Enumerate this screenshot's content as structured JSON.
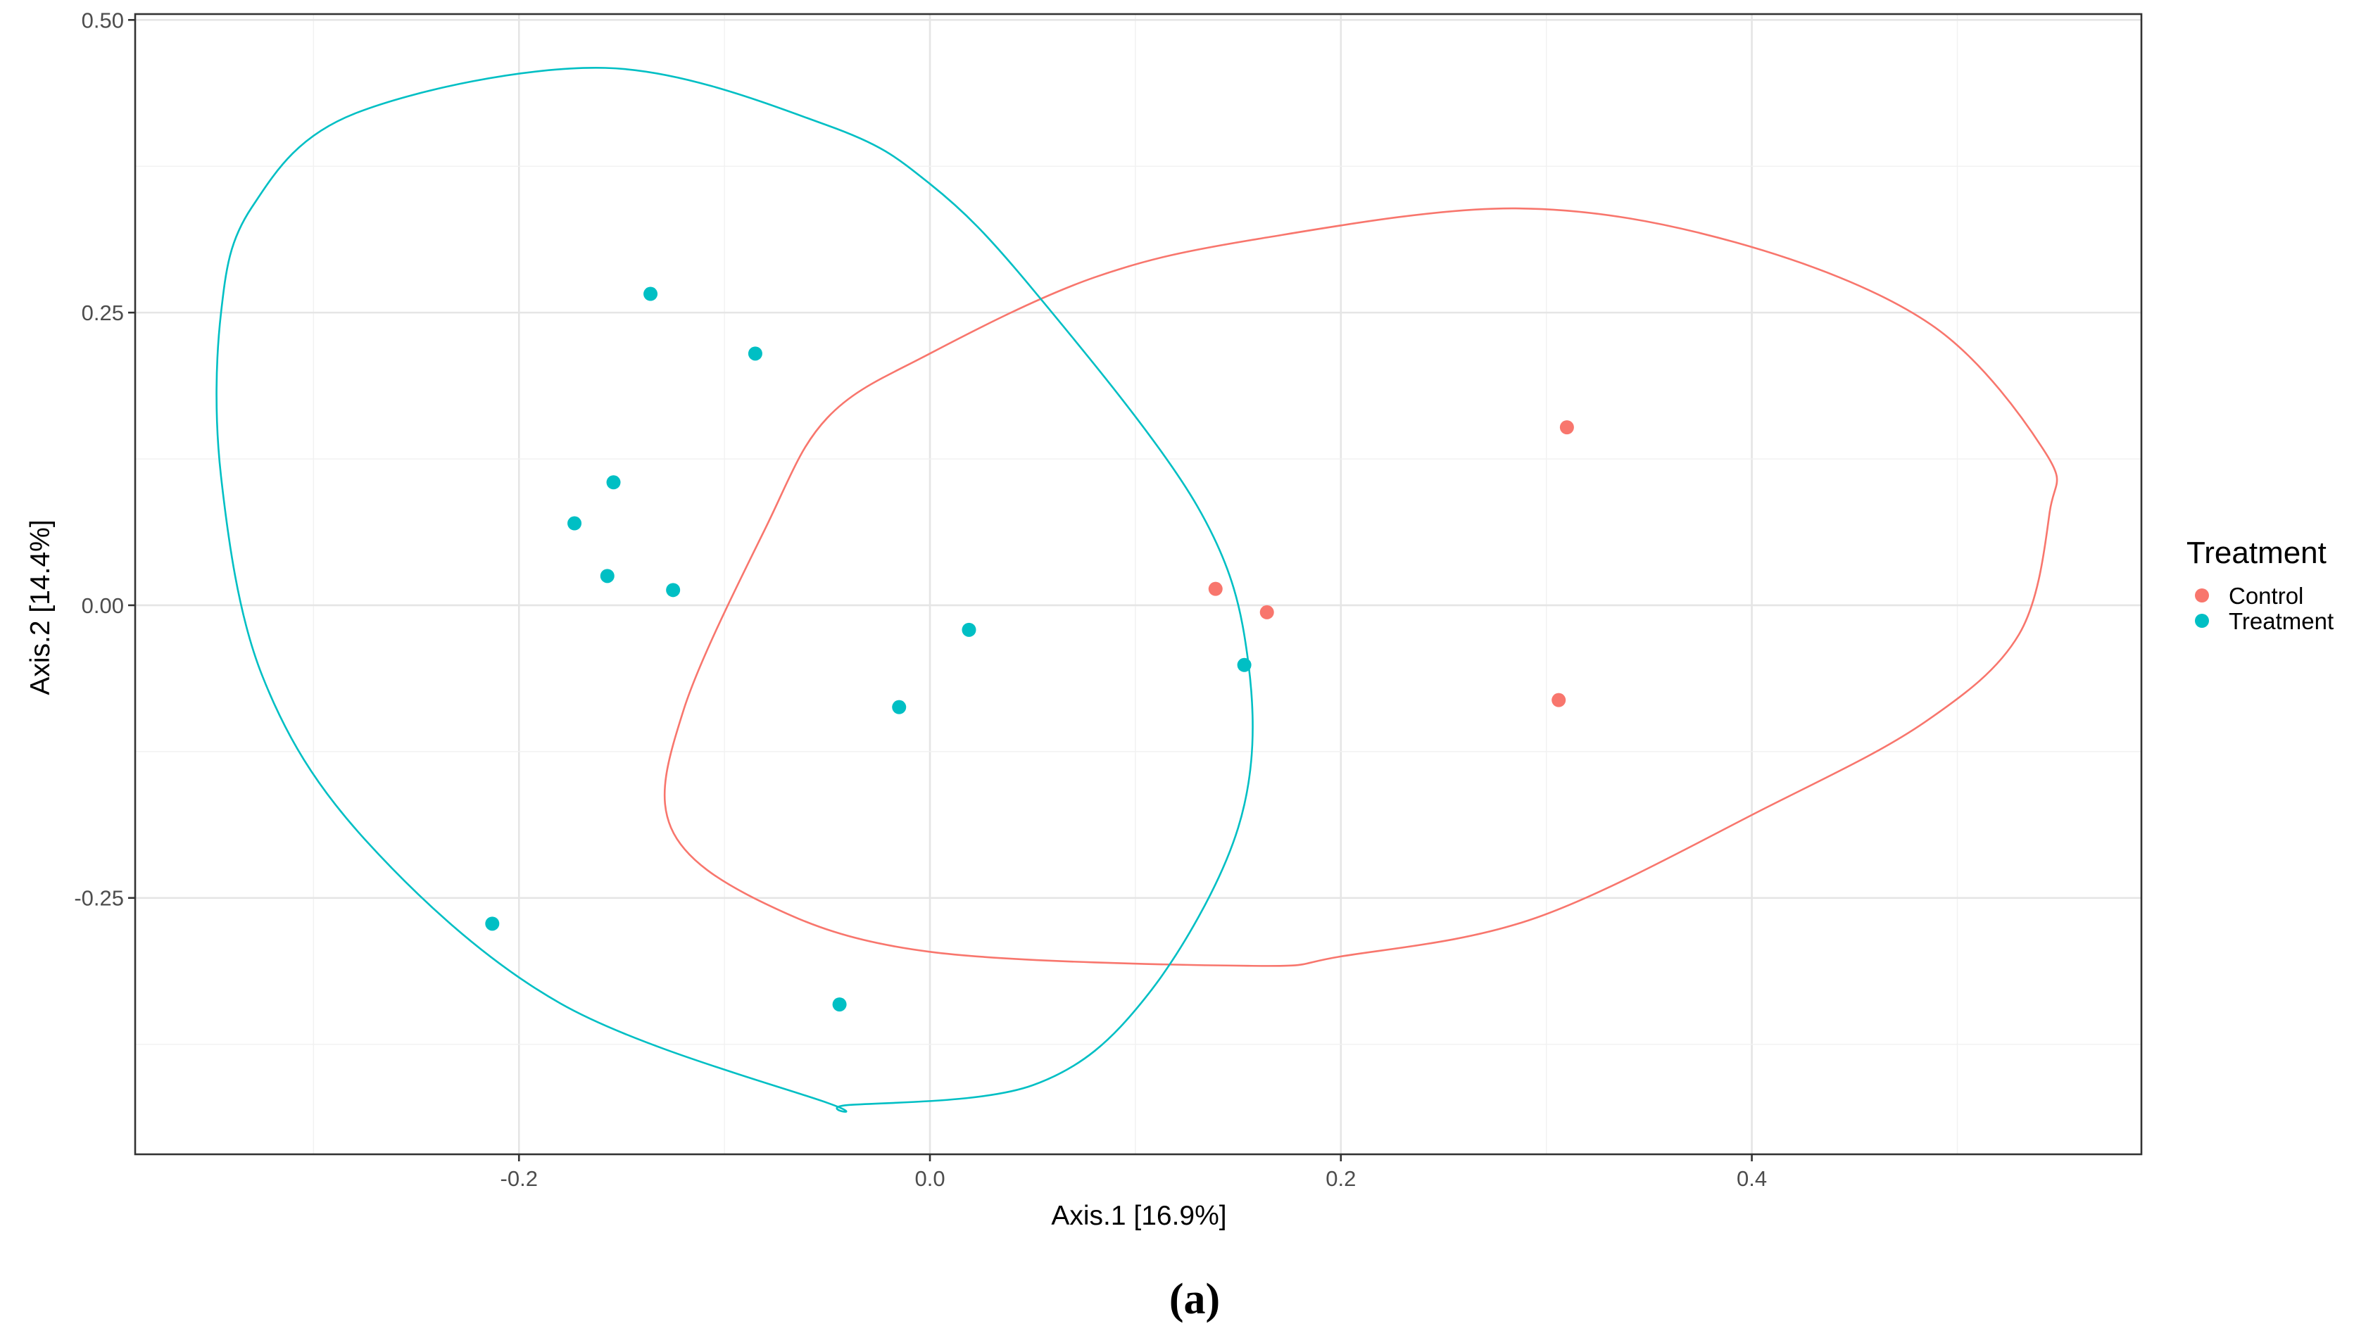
{
  "chart_data": {
    "type": "scatter",
    "title": "",
    "caption": "(a)",
    "xlabel": "Axis.1   [16.9%]",
    "ylabel": "Axis.2   [14.4%]",
    "xlim": [
      -0.3868,
      0.5896
    ],
    "ylim": [
      -0.469,
      0.505
    ],
    "xticks": [
      -0.2,
      0.0,
      0.2,
      0.4
    ],
    "xtick_labels": [
      "-0.2",
      "0.0",
      "0.2",
      "0.4"
    ],
    "yticks": [
      -0.25,
      0.0,
      0.25,
      0.5
    ],
    "ytick_labels": [
      "-0.25",
      "0.00",
      "0.25",
      "0.50"
    ],
    "grid": true,
    "legend": {
      "title": "Treatment",
      "position": "right"
    },
    "series": [
      {
        "name": "Control",
        "color": "#f8766d",
        "points": [
          {
            "x": 0.139,
            "y": 0.014
          },
          {
            "x": 0.164,
            "y": -0.006
          },
          {
            "x": 0.31,
            "y": 0.152
          },
          {
            "x": 0.306,
            "y": -0.081
          }
        ],
        "ellipse": [
          [
            0.285,
            0.339
          ],
          [
            0.392,
            0.31
          ],
          [
            0.487,
            0.24
          ],
          [
            0.543,
            0.13
          ],
          [
            0.545,
            0.08
          ],
          [
            0.53,
            -0.025
          ],
          [
            0.484,
            -0.1
          ],
          [
            0.408,
            -0.172
          ],
          [
            0.295,
            -0.267
          ],
          [
            0.2,
            -0.3
          ],
          [
            0.155,
            -0.308
          ],
          [
            0.0,
            -0.296
          ],
          [
            -0.08,
            -0.255
          ],
          [
            -0.126,
            -0.19
          ],
          [
            -0.12,
            -0.09
          ],
          [
            -0.08,
            0.066
          ],
          [
            -0.05,
            0.16
          ],
          [
            0.0,
            0.215
          ],
          [
            0.08,
            0.28
          ],
          [
            0.16,
            0.313
          ]
        ]
      },
      {
        "name": "Treatment",
        "color": "#00bfc4",
        "points": [
          {
            "x": -0.136,
            "y": 0.266
          },
          {
            "x": -0.085,
            "y": 0.215
          },
          {
            "x": -0.154,
            "y": 0.105
          },
          {
            "x": -0.173,
            "y": 0.07
          },
          {
            "x": -0.157,
            "y": 0.025
          },
          {
            "x": -0.125,
            "y": 0.013
          },
          {
            "x": 0.019,
            "y": -0.021
          },
          {
            "x": -0.015,
            "y": -0.087
          },
          {
            "x": 0.153,
            "y": -0.051
          },
          {
            "x": -0.213,
            "y": -0.272
          },
          {
            "x": -0.044,
            "y": -0.341
          }
        ],
        "ellipse": [
          [
            -0.158,
            0.459
          ],
          [
            -0.28,
            0.42
          ],
          [
            -0.33,
            0.34
          ],
          [
            -0.345,
            0.25
          ],
          [
            -0.345,
            0.11
          ],
          [
            -0.325,
            -0.06
          ],
          [
            -0.275,
            -0.2
          ],
          [
            -0.18,
            -0.34
          ],
          [
            -0.05,
            -0.425
          ],
          [
            -0.04,
            -0.427
          ],
          [
            0.05,
            -0.41
          ],
          [
            0.105,
            -0.335
          ],
          [
            0.15,
            -0.19
          ],
          [
            0.155,
            -0.05
          ],
          [
            0.13,
            0.085
          ],
          [
            0.05,
            0.27
          ],
          [
            0.0,
            0.36
          ],
          [
            -0.05,
            0.41
          ]
        ]
      }
    ]
  }
}
